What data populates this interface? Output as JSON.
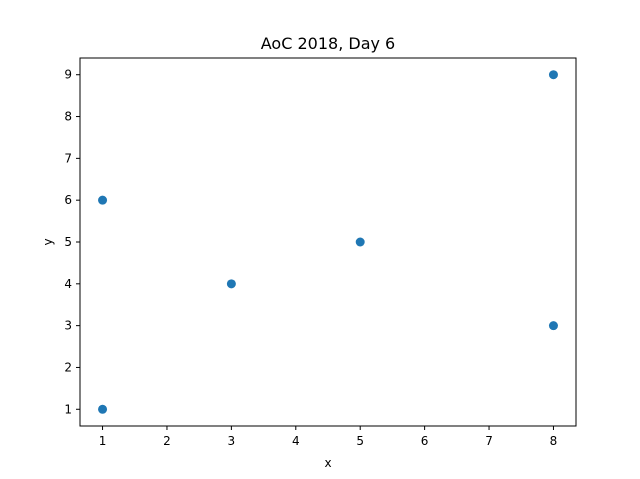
{
  "chart_data": {
    "type": "scatter",
    "title": "AoC 2018, Day 6",
    "xlabel": "x",
    "ylabel": "y",
    "xlim": [
      0.65,
      8.35
    ],
    "ylim": [
      0.6,
      9.4
    ],
    "xticks": [
      1,
      2,
      3,
      4,
      5,
      6,
      7,
      8
    ],
    "yticks": [
      1,
      2,
      3,
      4,
      5,
      6,
      7,
      8,
      9
    ],
    "grid": false,
    "series": [
      {
        "color": "#1f77b4",
        "points": [
          {
            "x": 1,
            "y": 1
          },
          {
            "x": 1,
            "y": 6
          },
          {
            "x": 8,
            "y": 3
          },
          {
            "x": 3,
            "y": 4
          },
          {
            "x": 5,
            "y": 5
          },
          {
            "x": 8,
            "y": 9
          }
        ]
      }
    ]
  }
}
